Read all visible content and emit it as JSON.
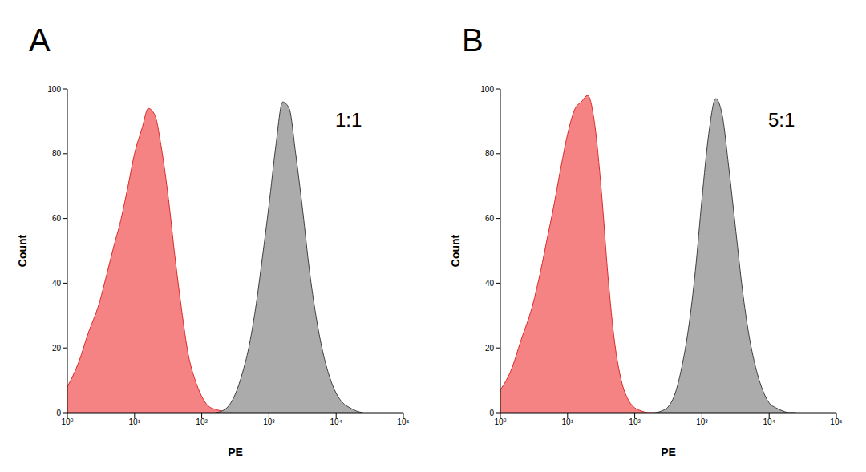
{
  "chart_data": [
    {
      "type": "area",
      "title": "A",
      "annotation": "1:1",
      "x_label": "PE",
      "y_label": "Count",
      "log": "x",
      "xlim": [
        1,
        100000
      ],
      "xticks": [
        {
          "value": 1,
          "label": "10⁰"
        },
        {
          "value": 10,
          "label": "10¹"
        },
        {
          "value": 100,
          "label": "10²"
        },
        {
          "value": 1000,
          "label": "10³"
        },
        {
          "value": 10000,
          "label": "10⁴"
        },
        {
          "value": 100000,
          "label": "10⁵"
        }
      ],
      "ylim": [
        0,
        100
      ],
      "yticks": [
        0,
        20,
        40,
        60,
        80,
        100
      ],
      "x": [
        1,
        1.5,
        2,
        3,
        4,
        5,
        6,
        8,
        10,
        13,
        16,
        20,
        25,
        32,
        40,
        50,
        63,
        80,
        100,
        126,
        160,
        200,
        250,
        320,
        400,
        500,
        630,
        800,
        1000,
        1260,
        1600,
        2000,
        2500,
        3200,
        4000,
        5000,
        6300,
        8000,
        10000,
        12600,
        16000,
        20000,
        25000
      ],
      "series": [
        {
          "color": "#f47c7c",
          "values": [
            8,
            16,
            24,
            34,
            44,
            52,
            58,
            70,
            80,
            88,
            94,
            92,
            82,
            66,
            48,
            32,
            18,
            10,
            5,
            2,
            1,
            0.5,
            0.2,
            0,
            null,
            null,
            null,
            null,
            null,
            null,
            null,
            null,
            null,
            null,
            null,
            null,
            null,
            null,
            null,
            null,
            null,
            null,
            null
          ]
        },
        {
          "color": "#a6a6a6",
          "values": [
            null,
            null,
            null,
            null,
            null,
            null,
            null,
            null,
            null,
            null,
            null,
            null,
            null,
            null,
            null,
            null,
            null,
            null,
            null,
            null,
            0,
            0.5,
            2,
            6,
            12,
            20,
            32,
            48,
            64,
            82,
            96,
            94,
            80,
            62,
            44,
            30,
            19,
            11,
            6,
            3,
            1.5,
            0.5,
            0
          ]
        }
      ]
    },
    {
      "type": "area",
      "title": "B",
      "annotation": "5:1",
      "x_label": "PE",
      "y_label": "Count",
      "log": "x",
      "xlim": [
        1,
        100000
      ],
      "xticks": [
        {
          "value": 1,
          "label": "10⁰"
        },
        {
          "value": 10,
          "label": "10¹"
        },
        {
          "value": 100,
          "label": "10²"
        },
        {
          "value": 1000,
          "label": "10³"
        },
        {
          "value": 10000,
          "label": "10⁴"
        },
        {
          "value": 100000,
          "label": "10⁵"
        }
      ],
      "ylim": [
        0,
        100
      ],
      "yticks": [
        0,
        20,
        40,
        60,
        80,
        100
      ],
      "x": [
        1,
        1.5,
        2,
        3,
        4,
        5,
        6,
        8,
        10,
        13,
        16,
        20,
        25,
        32,
        40,
        50,
        63,
        80,
        100,
        126,
        160,
        200,
        250,
        320,
        400,
        500,
        630,
        800,
        1000,
        1260,
        1600,
        2000,
        2500,
        3200,
        4000,
        5000,
        6300,
        8000,
        10000,
        12600,
        16000,
        20000,
        25000
      ],
      "series": [
        {
          "color": "#f47c7c",
          "values": [
            7,
            14,
            22,
            33,
            44,
            54,
            62,
            76,
            86,
            94,
            96,
            98,
            90,
            68,
            42,
            22,
            10,
            4,
            1.5,
            0.5,
            0,
            0,
            null,
            null,
            null,
            null,
            null,
            null,
            null,
            null,
            null,
            null,
            null,
            null,
            null,
            null,
            null,
            null,
            null,
            null,
            null,
            null,
            null
          ]
        },
        {
          "color": "#a6a6a6",
          "values": [
            null,
            null,
            null,
            null,
            null,
            null,
            null,
            null,
            null,
            null,
            null,
            null,
            null,
            null,
            null,
            null,
            null,
            null,
            null,
            null,
            null,
            0,
            0.5,
            2,
            6,
            14,
            26,
            44,
            66,
            86,
            97,
            92,
            76,
            56,
            38,
            24,
            14,
            7,
            3,
            1.5,
            0.5,
            0,
            0
          ]
        }
      ]
    }
  ]
}
